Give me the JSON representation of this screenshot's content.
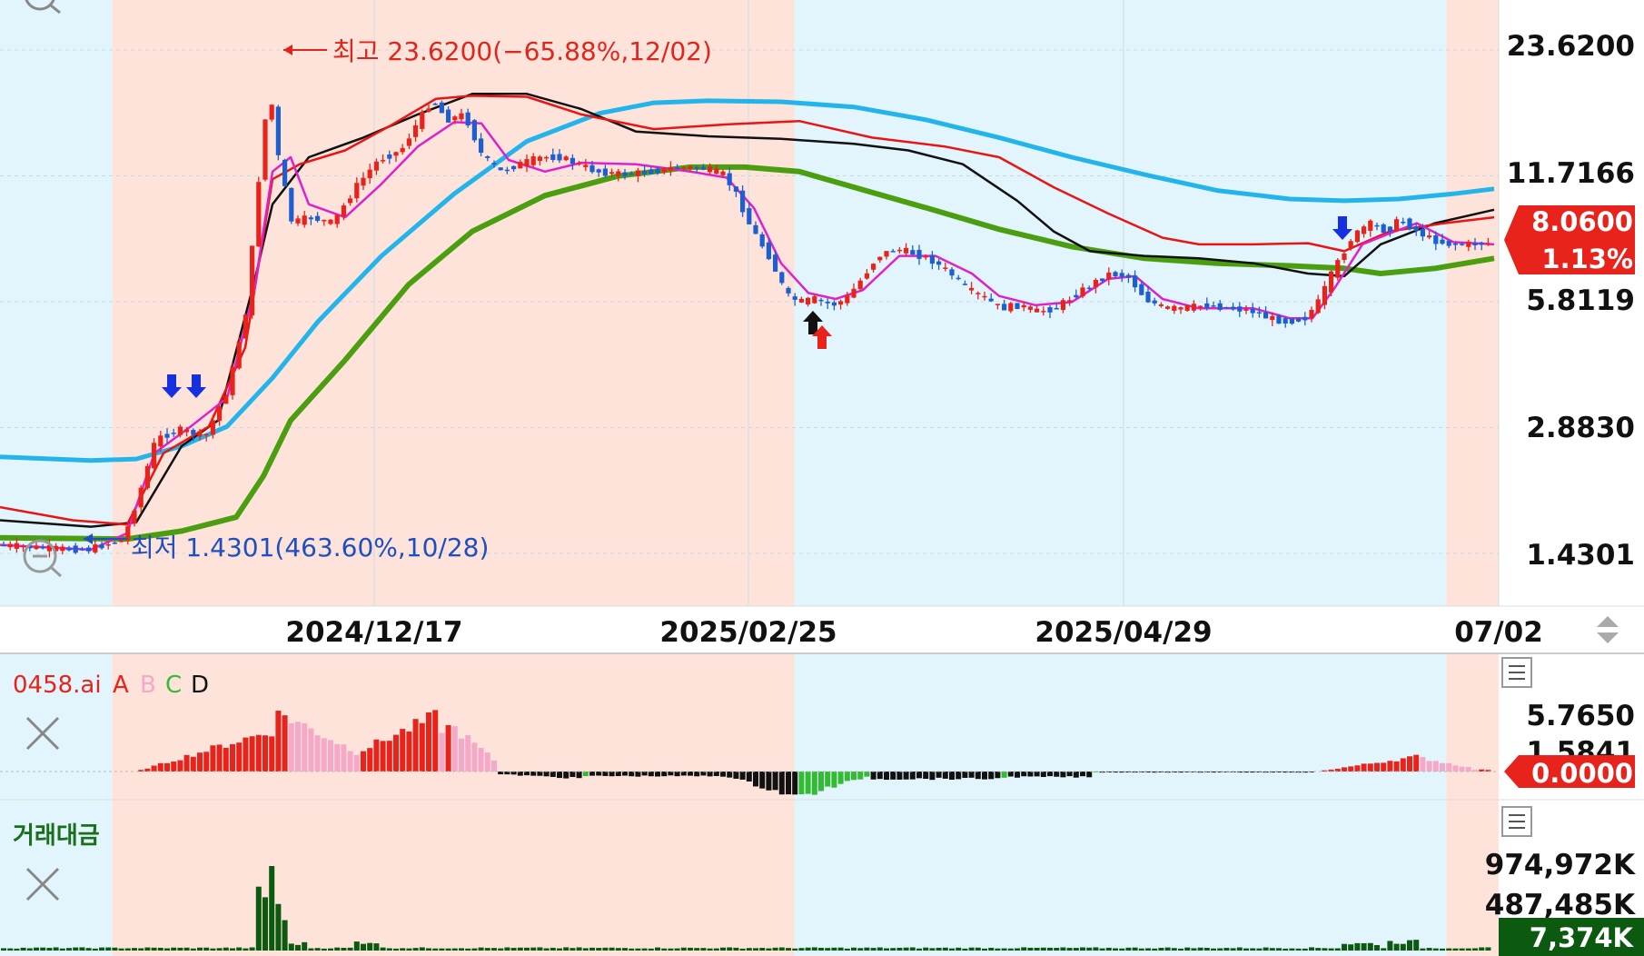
{
  "chart_data": {
    "type": "candlestick",
    "price_axis": {
      "scale": "log",
      "ylim": [
        1.2,
        30
      ],
      "ticks": [
        "23.6200",
        "11.7166",
        "5.8119",
        "2.8830",
        "1.4301"
      ]
    },
    "date_labels": [
      "2024/12/17",
      "2025/02/25",
      "2025/04/29",
      "07/02"
    ],
    "current": {
      "price": "8.0600",
      "change": "1.13%"
    },
    "annotations": {
      "high": "최고 23.6200(−65.88%,12/02)",
      "low": "최저 1.4301(463.60%,10/28)"
    },
    "regions": [
      {
        "from": 0.0,
        "to": 0.075,
        "color": "#e2f5fc"
      },
      {
        "from": 0.075,
        "to": 0.53,
        "color": "#fde3da"
      },
      {
        "from": 0.53,
        "to": 0.965,
        "color": "#e2f5fc"
      },
      {
        "from": 0.965,
        "to": 1.0,
        "color": "#fde3da"
      }
    ],
    "series": [
      {
        "role": "sma-short",
        "color": "#dd22cc"
      },
      {
        "role": "sma-red",
        "color": "#e81515"
      },
      {
        "role": "sma-black",
        "color": "#111111"
      },
      {
        "role": "sma-cyan",
        "color": "#22b4ea"
      },
      {
        "role": "sma-green",
        "color": "#4a9e10"
      }
    ],
    "indicator": {
      "title": "0458.ai",
      "legend": [
        "A",
        "B",
        "C",
        "D"
      ],
      "legend_colors": [
        "#e8231c",
        "#f6a8c8",
        "#33bb33",
        "#111111"
      ],
      "ticks": [
        "5.7650",
        "1.5841"
      ],
      "current": "0.0000"
    },
    "volume": {
      "title": "거래대금",
      "ticks": [
        "974,972K",
        "487,485K"
      ],
      "current": "7,374K"
    }
  },
  "ui": {
    "close_icon": "close-x-icon",
    "menu_icon": "hamburger-menu-icon",
    "zoom_icon": "zoom-out-icon",
    "scroll_icon": "up-down-arrow-icon"
  }
}
